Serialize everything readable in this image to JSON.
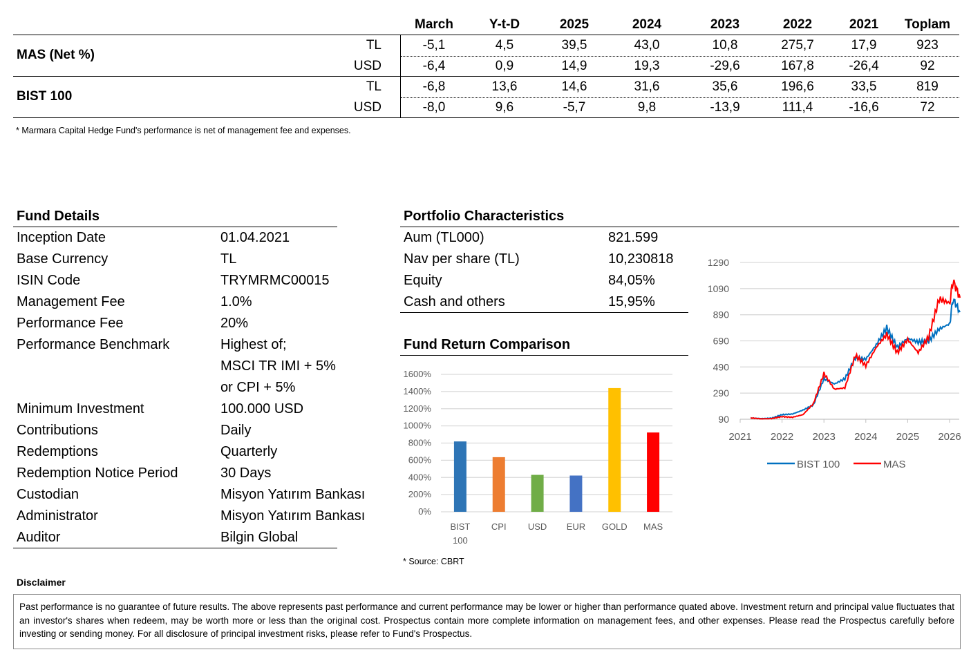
{
  "performance_table": {
    "columns": [
      "March",
      "Y-t-D",
      "2025",
      "2024",
      "2023",
      "2022",
      "2021",
      "Toplam"
    ],
    "groups": [
      {
        "label": "MAS (Net %)",
        "rows": [
          {
            "currency": "TL",
            "values": [
              "-5,1",
              "4,5",
              "39,5",
              "43,0",
              "10,8",
              "275,7",
              "17,9",
              "923"
            ]
          },
          {
            "currency": "USD",
            "values": [
              "-6,4",
              "0,9",
              "14,9",
              "19,3",
              "-29,6",
              "167,8",
              "-26,4",
              "92"
            ]
          }
        ]
      },
      {
        "label": "BIST 100",
        "rows": [
          {
            "currency": "TL",
            "values": [
              "-6,8",
              "13,6",
              "14,6",
              "31,6",
              "35,6",
              "196,6",
              "33,5",
              "819"
            ]
          },
          {
            "currency": "USD",
            "values": [
              "-8,0",
              "9,6",
              "-5,7",
              "9,8",
              "-13,9",
              "111,4",
              "-16,6",
              "72"
            ]
          }
        ]
      }
    ],
    "footnote": "* Marmara Capital Hedge Fund's performance is net of management fee and expenses."
  },
  "fund_details": {
    "title": "Fund Details",
    "rows": [
      {
        "label": "Inception Date",
        "value": "01.04.2021"
      },
      {
        "label": "Base Currency",
        "value": "TL"
      },
      {
        "label": "ISIN Code",
        "value": "TRYMRMC00015"
      },
      {
        "label": "Management Fee",
        "value": "1.0%"
      },
      {
        "label": "Performance Fee",
        "value": "20%"
      },
      {
        "label": "Performance Benchmark",
        "value": "Highest of;"
      },
      {
        "label": "",
        "value": "MSCI TR IMI + 5%"
      },
      {
        "label": "",
        "value": "or CPI + 5%"
      },
      {
        "label": "Minimum Investment",
        "value": "100.000 USD"
      },
      {
        "label": "Contributions",
        "value": "Daily"
      },
      {
        "label": "Redemptions",
        "value": "Quarterly"
      },
      {
        "label": "Redemption Notice Period",
        "value": "30 Days"
      },
      {
        "label": "Custodian",
        "value": "Misyon Yatırım Bankası"
      },
      {
        "label": "Administrator",
        "value": "Misyon Yatırım Bankası"
      },
      {
        "label": "Auditor",
        "value": "Bilgin Global"
      }
    ]
  },
  "portfolio": {
    "title": "Portfolio Characteristics",
    "rows": [
      {
        "label": "Aum (TL000)",
        "value": "821.599"
      },
      {
        "label": "Nav per share (TL)",
        "value": "10,230818"
      },
      {
        "label": "Equity",
        "value": "84,05%"
      },
      {
        "label": "Cash and others",
        "value": "15,95%"
      }
    ]
  },
  "comparison_title": "Fund Return Comparison",
  "source_note": "* Source: CBRT",
  "disclaimer": {
    "title": "Disclaimer",
    "text": "Past performance is no guarantee of future results. The above represents past performance and current performance may be lower or higher than performance quated above. Investment return and principal value fluctuates that an investor's shares when redeem, may be worth more or less than the original cost. Prospectus contain  more complete information on management fees, and other expenses. Please read the Prospectus carefully before investing or sending money. For all disclosure of principal investment risks, please refer to Fund's Prospectus."
  },
  "chart_data": [
    {
      "type": "bar",
      "categories": [
        "BIST 100",
        "CPI",
        "USD",
        "EUR",
        "GOLD",
        "MAS"
      ],
      "values": [
        819,
        636,
        430,
        422,
        1440,
        923
      ],
      "colors": [
        "#2e75b6",
        "#ed7d31",
        "#70ad47",
        "#4472c4",
        "#ffc000",
        "#ff0000"
      ],
      "ylim": [
        0,
        1600
      ],
      "yticks": [
        "0%",
        "200%",
        "400%",
        "600%",
        "800%",
        "1000%",
        "1200%",
        "1400%",
        "1600%"
      ],
      "grid": true
    },
    {
      "type": "line",
      "ylim": [
        90,
        1290
      ],
      "yticks": [
        90,
        290,
        490,
        690,
        890,
        1090,
        1290
      ],
      "xticks": [
        "2021",
        "2022",
        "2023",
        "2024",
        "2025",
        "2026"
      ],
      "grid": true,
      "legend": "bottom",
      "series": [
        {
          "name": "BIST 100",
          "color": "#0070c0",
          "points": [
            [
              "2021-04",
              100
            ],
            [
              "2021-07",
              95
            ],
            [
              "2021-10",
              98
            ],
            [
              "2022-01",
              125
            ],
            [
              "2022-04",
              130
            ],
            [
              "2022-07",
              160
            ],
            [
              "2022-10",
              200
            ],
            [
              "2023-01",
              400
            ],
            [
              "2023-04",
              360
            ],
            [
              "2023-07",
              400
            ],
            [
              "2023-10",
              560
            ],
            [
              "2024-01",
              550
            ],
            [
              "2024-04",
              660
            ],
            [
              "2024-07",
              790
            ],
            [
              "2024-10",
              640
            ],
            [
              "2025-01",
              710
            ],
            [
              "2025-04",
              680
            ],
            [
              "2025-07",
              690
            ],
            [
              "2025-10",
              780
            ],
            [
              "2026-01",
              820
            ],
            [
              "2026-02",
              1010
            ],
            [
              "2026-04",
              910
            ]
          ]
        },
        {
          "name": "MAS",
          "color": "#ff0000",
          "points": [
            [
              "2021-04",
              100
            ],
            [
              "2021-07",
              93
            ],
            [
              "2021-10",
              95
            ],
            [
              "2022-01",
              110
            ],
            [
              "2022-04",
              105
            ],
            [
              "2022-07",
              125
            ],
            [
              "2022-10",
              210
            ],
            [
              "2023-01",
              440
            ],
            [
              "2023-04",
              320
            ],
            [
              "2023-07",
              330
            ],
            [
              "2023-10",
              580
            ],
            [
              "2024-01",
              500
            ],
            [
              "2024-04",
              640
            ],
            [
              "2024-07",
              740
            ],
            [
              "2024-10",
              600
            ],
            [
              "2025-01",
              700
            ],
            [
              "2025-04",
              600
            ],
            [
              "2025-07",
              720
            ],
            [
              "2025-10",
              1010
            ],
            [
              "2026-01",
              980
            ],
            [
              "2026-02",
              1150
            ],
            [
              "2026-04",
              1020
            ]
          ]
        }
      ]
    }
  ]
}
